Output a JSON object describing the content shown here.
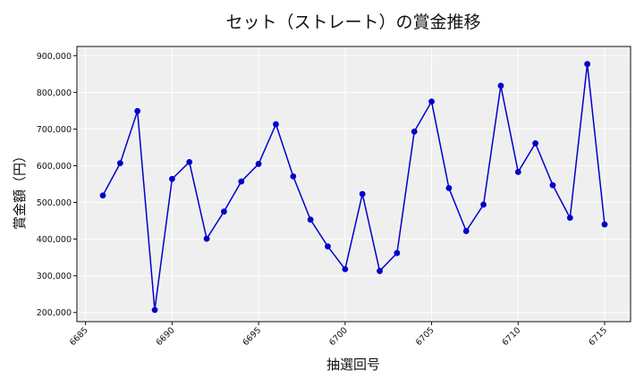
{
  "chart_data": {
    "type": "line",
    "title": "セット（ストレート）の賞金推移",
    "xlabel": "抽選回号",
    "ylabel": "賞金額（円）",
    "xlim": [
      6684.5,
      6716.5
    ],
    "ylim": [
      175000,
      925000
    ],
    "x_ticks": [
      6685,
      6690,
      6695,
      6700,
      6705,
      6710,
      6715
    ],
    "x_tick_labels": [
      "6685",
      "6690",
      "6695",
      "6700",
      "6705",
      "6710",
      "6715"
    ],
    "y_ticks": [
      200000,
      300000,
      400000,
      500000,
      600000,
      700000,
      800000,
      900000
    ],
    "y_tick_labels": [
      "200,000",
      "300,000",
      "400,000",
      "500,000",
      "600,000",
      "700,000",
      "800,000",
      "900,000"
    ],
    "grid": true,
    "background": "#efefef",
    "series": [
      {
        "color": "#0000cc",
        "x": [
          6686,
          6687,
          6688,
          6689,
          6690,
          6691,
          6692,
          6693,
          6694,
          6695,
          6696,
          6697,
          6698,
          6699,
          6700,
          6701,
          6702,
          6703,
          6704,
          6705,
          6706,
          6707,
          6708,
          6709,
          6710,
          6711,
          6712,
          6713,
          6714,
          6715
        ],
        "y": [
          519000,
          607000,
          749000,
          207000,
          564000,
          610000,
          401000,
          475000,
          557000,
          605000,
          713000,
          571000,
          453000,
          380000,
          318000,
          523000,
          313000,
          362000,
          693000,
          775000,
          539000,
          422000,
          494000,
          818000,
          583000,
          661000,
          547000,
          458000,
          877000,
          440000
        ]
      }
    ]
  }
}
